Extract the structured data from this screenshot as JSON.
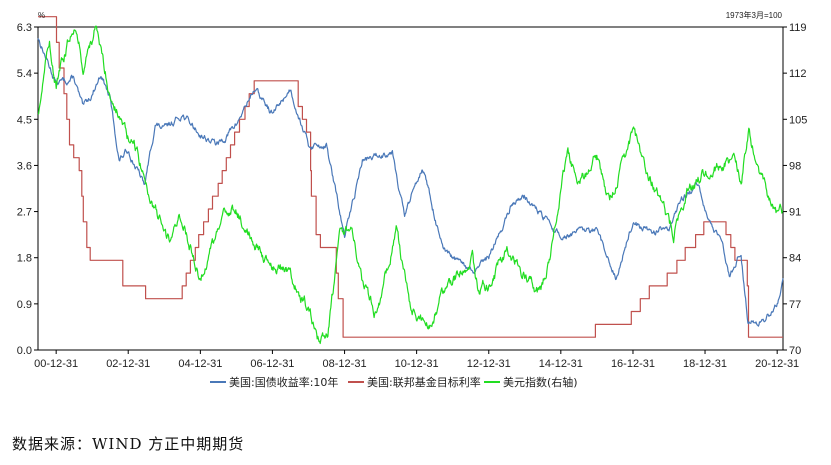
{
  "chart_data": {
    "type": "line",
    "left_unit": "%",
    "right_unit": "1973年3月=100",
    "x_tick_labels": [
      "00-12-31",
      "02-12-31",
      "04-12-31",
      "06-12-31",
      "08-12-31",
      "10-12-31",
      "12-12-31",
      "14-12-31",
      "16-12-31",
      "18-12-31",
      "20-12-31"
    ],
    "x_range": [
      "2000-06-30",
      "2021-02-28"
    ],
    "y_left": {
      "ticks": [
        "0.0",
        "0.9",
        "1.8",
        "2.7",
        "3.6",
        "4.5",
        "5.4",
        "6.3"
      ],
      "range": [
        0,
        6.3
      ]
    },
    "y_right": {
      "ticks": [
        "70",
        "77",
        "84",
        "91",
        "98",
        "105",
        "112",
        "119"
      ],
      "range": [
        70,
        119
      ]
    },
    "legend_position": "bottom",
    "series": [
      {
        "name": "美国:国债收益率:10年",
        "axis": "left",
        "color": "#4a78b8",
        "points": [
          [
            "2000-06-30",
            6.1
          ],
          [
            "2000-12-31",
            5.2
          ],
          [
            "2001-06-30",
            5.3
          ],
          [
            "2001-09-30",
            4.7
          ],
          [
            "2001-12-31",
            5.0
          ],
          [
            "2002-03-31",
            5.4
          ],
          [
            "2002-06-30",
            4.9
          ],
          [
            "2002-09-30",
            3.7
          ],
          [
            "2002-12-31",
            3.9
          ],
          [
            "2003-06-15",
            3.2
          ],
          [
            "2003-09-30",
            4.4
          ],
          [
            "2003-12-31",
            4.3
          ],
          [
            "2004-06-30",
            4.6
          ],
          [
            "2004-12-31",
            4.2
          ],
          [
            "2005-06-30",
            4.0
          ],
          [
            "2005-12-31",
            4.4
          ],
          [
            "2006-06-30",
            5.1
          ],
          [
            "2006-12-31",
            4.6
          ],
          [
            "2007-06-30",
            5.1
          ],
          [
            "2007-12-31",
            4.0
          ],
          [
            "2008-06-30",
            4.0
          ],
          [
            "2008-12-31",
            2.2
          ],
          [
            "2009-06-30",
            3.7
          ],
          [
            "2009-12-31",
            3.8
          ],
          [
            "2010-04-30",
            3.9
          ],
          [
            "2010-08-31",
            2.6
          ],
          [
            "2010-12-31",
            3.3
          ],
          [
            "2011-02-28",
            3.6
          ],
          [
            "2011-09-30",
            1.9
          ],
          [
            "2012-07-31",
            1.5
          ],
          [
            "2012-12-31",
            1.8
          ],
          [
            "2013-09-06",
            2.9
          ],
          [
            "2013-12-31",
            3.0
          ],
          [
            "2014-06-30",
            2.6
          ],
          [
            "2014-12-31",
            2.2
          ],
          [
            "2015-06-30",
            2.3
          ],
          [
            "2015-12-31",
            2.3
          ],
          [
            "2016-07-08",
            1.4
          ],
          [
            "2016-12-31",
            2.5
          ],
          [
            "2017-06-30",
            2.3
          ],
          [
            "2017-12-31",
            2.4
          ],
          [
            "2018-05-31",
            3.0
          ],
          [
            "2018-10-31",
            3.2
          ],
          [
            "2018-12-31",
            2.7
          ],
          [
            "2019-06-30",
            2.0
          ],
          [
            "2019-09-03",
            1.5
          ],
          [
            "2019-12-31",
            1.9
          ],
          [
            "2020-03-09",
            0.6
          ],
          [
            "2020-08-04",
            0.55
          ],
          [
            "2020-12-31",
            0.9
          ],
          [
            "2021-02-28",
            1.4
          ]
        ]
      },
      {
        "name": "美国:联邦基金目标利率",
        "axis": "left",
        "color": "#c0504d",
        "points": [
          [
            "2000-06-30",
            6.5
          ],
          [
            "2000-12-31",
            6.5
          ],
          [
            "2001-01-03",
            6.0
          ],
          [
            "2001-01-31",
            5.5
          ],
          [
            "2001-03-20",
            5.0
          ],
          [
            "2001-04-18",
            4.5
          ],
          [
            "2001-05-15",
            4.0
          ],
          [
            "2001-06-27",
            3.75
          ],
          [
            "2001-08-21",
            3.5
          ],
          [
            "2001-09-17",
            3.0
          ],
          [
            "2001-10-02",
            2.5
          ],
          [
            "2001-11-06",
            2.0
          ],
          [
            "2001-12-11",
            1.75
          ],
          [
            "2002-11-06",
            1.25
          ],
          [
            "2003-06-25",
            1.0
          ],
          [
            "2004-06-30",
            1.25
          ],
          [
            "2004-08-10",
            1.5
          ],
          [
            "2004-09-21",
            1.75
          ],
          [
            "2004-11-10",
            2.0
          ],
          [
            "2004-12-14",
            2.25
          ],
          [
            "2005-02-02",
            2.5
          ],
          [
            "2005-03-22",
            2.75
          ],
          [
            "2005-05-03",
            3.0
          ],
          [
            "2005-06-30",
            3.25
          ],
          [
            "2005-08-09",
            3.5
          ],
          [
            "2005-09-20",
            3.75
          ],
          [
            "2005-11-01",
            4.0
          ],
          [
            "2005-12-13",
            4.25
          ],
          [
            "2006-01-31",
            4.5
          ],
          [
            "2006-03-28",
            4.75
          ],
          [
            "2006-05-10",
            5.0
          ],
          [
            "2006-06-29",
            5.25
          ],
          [
            "2007-09-18",
            4.75
          ],
          [
            "2007-10-31",
            4.5
          ],
          [
            "2007-12-11",
            4.25
          ],
          [
            "2008-01-22",
            3.5
          ],
          [
            "2008-01-30",
            3.0
          ],
          [
            "2008-03-18",
            2.25
          ],
          [
            "2008-04-30",
            2.0
          ],
          [
            "2008-10-08",
            1.5
          ],
          [
            "2008-10-29",
            1.0
          ],
          [
            "2008-12-16",
            0.25
          ],
          [
            "2015-12-16",
            0.5
          ],
          [
            "2016-12-14",
            0.75
          ],
          [
            "2017-03-15",
            1.0
          ],
          [
            "2017-06-14",
            1.25
          ],
          [
            "2017-12-13",
            1.5
          ],
          [
            "2018-03-21",
            1.75
          ],
          [
            "2018-06-13",
            2.0
          ],
          [
            "2018-09-26",
            2.25
          ],
          [
            "2018-12-19",
            2.5
          ],
          [
            "2019-07-31",
            2.25
          ],
          [
            "2019-09-18",
            2.0
          ],
          [
            "2019-10-30",
            1.75
          ],
          [
            "2020-03-03",
            1.25
          ],
          [
            "2020-03-15",
            0.25
          ],
          [
            "2021-02-28",
            0.25
          ]
        ]
      },
      {
        "name": "美元指数(右轴)",
        "axis": "right",
        "color": "#22dd22",
        "points": [
          [
            "2000-06-30",
            106
          ],
          [
            "2000-10-25",
            117
          ],
          [
            "2000-12-31",
            110
          ],
          [
            "2001-03-31",
            115
          ],
          [
            "2001-07-06",
            120
          ],
          [
            "2001-09-30",
            113
          ],
          [
            "2002-01-31",
            119
          ],
          [
            "2002-06-30",
            109
          ],
          [
            "2002-12-31",
            102
          ],
          [
            "2003-03-31",
            100
          ],
          [
            "2003-06-30",
            95
          ],
          [
            "2003-12-31",
            88
          ],
          [
            "2004-02-29",
            86
          ],
          [
            "2004-05-31",
            91
          ],
          [
            "2004-12-31",
            81
          ],
          [
            "2005-06-30",
            88
          ],
          [
            "2005-11-15",
            92
          ],
          [
            "2005-12-31",
            91
          ],
          [
            "2006-06-30",
            86
          ],
          [
            "2006-12-31",
            83
          ],
          [
            "2007-06-30",
            82
          ],
          [
            "2007-12-31",
            76
          ],
          [
            "2008-04-22",
            71
          ],
          [
            "2008-07-15",
            72
          ],
          [
            "2008-11-21",
            88
          ],
          [
            "2009-03-04",
            89
          ],
          [
            "2009-06-30",
            80
          ],
          [
            "2009-11-25",
            75
          ],
          [
            "2010-06-07",
            88
          ],
          [
            "2010-11-04",
            76
          ],
          [
            "2011-05-04",
            73
          ],
          [
            "2011-09-30",
            79
          ],
          [
            "2012-07-24",
            84
          ],
          [
            "2012-09-14",
            79
          ],
          [
            "2012-12-31",
            80
          ],
          [
            "2013-07-09",
            85
          ],
          [
            "2014-05-06",
            79
          ],
          [
            "2014-06-30",
            80
          ],
          [
            "2014-09-30",
            86
          ],
          [
            "2015-03-13",
            100
          ],
          [
            "2015-06-30",
            95
          ],
          [
            "2015-12-31",
            99
          ],
          [
            "2016-05-03",
            92
          ],
          [
            "2016-12-31",
            103
          ],
          [
            "2017-05-31",
            97
          ],
          [
            "2018-02-16",
            88
          ],
          [
            "2018-06-30",
            94
          ],
          [
            "2018-12-31",
            97
          ],
          [
            "2019-09-30",
            99
          ],
          [
            "2019-12-31",
            96
          ],
          [
            "2020-03-19",
            103
          ],
          [
            "2020-06-30",
            97
          ],
          [
            "2020-12-31",
            90
          ],
          [
            "2021-02-28",
            91
          ]
        ]
      }
    ]
  },
  "source_text": "数据来源：WIND  方正中期期货"
}
